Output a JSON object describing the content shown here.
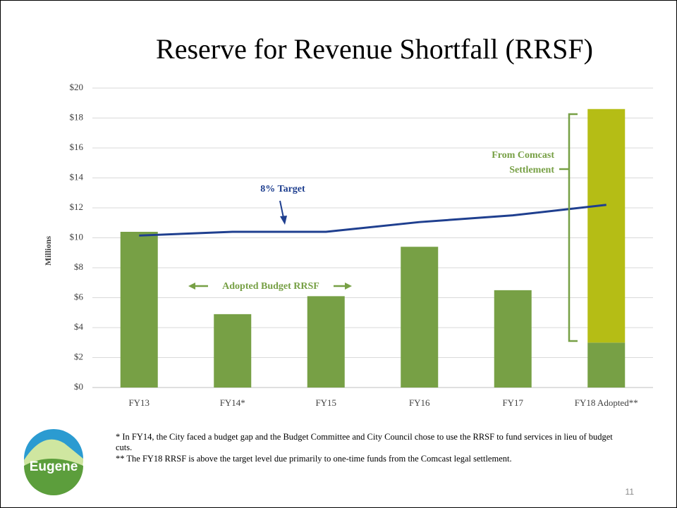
{
  "title": "Reserve for Revenue Shortfall (RRSF)",
  "chart_data": {
    "type": "bar",
    "stacked": true,
    "categories": [
      "FY13",
      "FY14*",
      "FY15",
      "FY16",
      "FY17",
      "FY18 Adopted**"
    ],
    "series": [
      {
        "name": "Adopted Budget RRSF",
        "color": "#77a045",
        "values": [
          10.4,
          4.9,
          6.1,
          9.4,
          6.5,
          3.0
        ]
      },
      {
        "name": "From Comcast Settlement",
        "color": "#b5bd15",
        "values": [
          null,
          null,
          null,
          null,
          null,
          15.6
        ]
      },
      {
        "name": "8% Target",
        "type": "line",
        "color": "#1f3f8f",
        "values": [
          10.15,
          10.4,
          10.4,
          11.05,
          11.5,
          12.2
        ]
      }
    ],
    "ylabel": "Millions",
    "ylim": [
      0,
      20
    ],
    "yticks": [
      {
        "value": 0,
        "label": "$0"
      },
      {
        "value": 2,
        "label": "$2"
      },
      {
        "value": 4,
        "label": "$4"
      },
      {
        "value": 6,
        "label": "$6"
      },
      {
        "value": 8,
        "label": "$8"
      },
      {
        "value": 10,
        "label": "$10"
      },
      {
        "value": 12,
        "label": "$12"
      },
      {
        "value": 14,
        "label": "$14"
      },
      {
        "value": 16,
        "label": "$16"
      },
      {
        "value": 18,
        "label": "$18"
      },
      {
        "value": 20,
        "label": "$20"
      }
    ],
    "grid": true
  },
  "notes": [
    "* In FY14, the City faced a budget gap and the Budget Committee and City Council chose to use the RRSF to fund services in lieu of budget cuts.",
    "** The FY18 RRSF is above the target level due primarily to one-time funds from the Comcast legal settlement."
  ],
  "logo": {
    "text": "Eugene"
  },
  "page_number": "11"
}
